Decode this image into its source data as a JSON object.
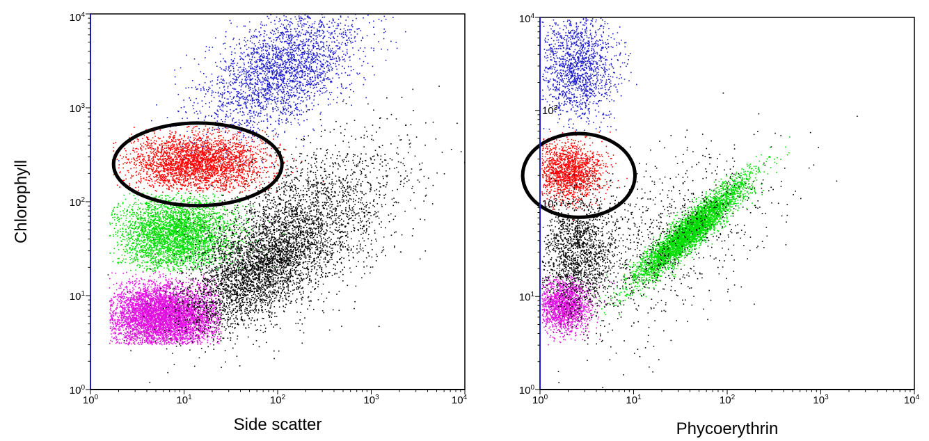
{
  "chart_data": [
    {
      "type": "scatter",
      "title": "",
      "xlabel": "Side scatter",
      "ylabel": "Chlorophyll",
      "xscale": "log",
      "yscale": "log",
      "xlim": [
        1,
        10000
      ],
      "ylim": [
        1,
        10000
      ],
      "grid": false,
      "x_ticks": [
        {
          "base": "10",
          "exp": "0"
        },
        {
          "base": "10",
          "exp": "1"
        },
        {
          "base": "10",
          "exp": "2"
        },
        {
          "base": "10",
          "exp": "3"
        },
        {
          "base": "10",
          "exp": "4"
        }
      ],
      "y_ticks": [
        {
          "base": "10",
          "exp": "0"
        },
        {
          "base": "10",
          "exp": "1"
        },
        {
          "base": "10",
          "exp": "2"
        },
        {
          "base": "10",
          "exp": "3"
        },
        {
          "base": "10",
          "exp": "4"
        }
      ],
      "series": [
        {
          "color": "#1a1acc",
          "count": 2600,
          "clusters": [
            {
              "cx": 110,
              "cy": 2500,
              "sx": 0.42,
              "sy": 0.34,
              "rho": 0.5
            }
          ]
        },
        {
          "color": "#ff0000",
          "count": 3000,
          "clusters": [
            {
              "cx": 14,
              "cy": 260,
              "sx": 0.36,
              "sy": 0.15,
              "rho": 0.0
            }
          ],
          "xmin": 1.6,
          "ymin": 125,
          "ymax": 650
        },
        {
          "color": "#00dd00",
          "count": 3500,
          "clusters": [
            {
              "cx": 8,
              "cy": 45,
              "sx": 0.32,
              "sy": 0.2,
              "rho": 0.0
            }
          ],
          "xmin": 1.6,
          "ymin": 18,
          "ymax": 125
        },
        {
          "color": "#e010e0",
          "count": 5200,
          "clusters": [
            {
              "cx": 6,
              "cy": 6,
              "sx": 0.3,
              "sy": 0.17,
              "rho": 0.0
            }
          ],
          "xmin": 1.6,
          "xmax": 25,
          "ymin": 3,
          "ymax": 18
        },
        {
          "color": "#000000",
          "count": 5200,
          "clusters": [
            {
              "cx": 60,
              "cy": 18,
              "sx": 0.38,
              "sy": 0.32,
              "rho": 0.55,
              "w": 0.55
            },
            {
              "cx": 200,
              "cy": 60,
              "sx": 0.55,
              "sy": 0.45,
              "rho": 0.5,
              "w": 0.45
            }
          ]
        }
      ],
      "gate": {
        "type": "ellipse",
        "cx": 14,
        "cy": 250,
        "rx_decades": 0.9,
        "ry_decades": 0.44
      }
    },
    {
      "type": "scatter",
      "title": "",
      "xlabel": "Phycoerythrin",
      "ylabel": "",
      "xscale": "log",
      "yscale": "log",
      "xlim": [
        1,
        10000
      ],
      "ylim": [
        1,
        10000
      ],
      "grid": false,
      "x_ticks": [
        {
          "base": "10",
          "exp": "0"
        },
        {
          "base": "10",
          "exp": "1"
        },
        {
          "base": "10",
          "exp": "2"
        },
        {
          "base": "10",
          "exp": "3"
        },
        {
          "base": "10",
          "exp": "4"
        }
      ],
      "y_ticks": [
        {
          "base": "10",
          "exp": "0"
        },
        {
          "base": "10",
          "exp": "1"
        },
        {
          "base": "10",
          "exp": "2"
        },
        {
          "base": "10",
          "exp": "3"
        },
        {
          "base": "10",
          "exp": "4"
        }
      ],
      "series": [
        {
          "color": "#1a1acc",
          "count": 1400,
          "clusters": [
            {
              "cx": 2.5,
              "cy": 3000,
              "sx": 0.2,
              "sy": 0.3,
              "rho": 0.0
            }
          ],
          "xmin": 1.05,
          "ymin": 600
        },
        {
          "color": "#ff0000",
          "count": 1500,
          "clusters": [
            {
              "cx": 2,
              "cy": 220,
              "sx": 0.18,
              "sy": 0.16,
              "rho": 0.0
            }
          ],
          "xmin": 1.05,
          "ymin": 60,
          "ymax": 600
        },
        {
          "color": "#00dd00",
          "count": 4500,
          "clusters": [
            {
              "cx": 40,
              "cy": 50,
              "sx": 0.3,
              "sy": 0.28,
              "rho": 0.93
            }
          ]
        },
        {
          "color": "#e010e0",
          "count": 1600,
          "clusters": [
            {
              "cx": 1.8,
              "cy": 8,
              "sx": 0.14,
              "sy": 0.14,
              "rho": 0.0
            }
          ],
          "xmin": 1.05,
          "ymin": 3,
          "ymax": 17
        },
        {
          "color": "#000000",
          "count": 2400,
          "clusters": [
            {
              "cx": 2.5,
              "cy": 30,
              "sx": 0.2,
              "sy": 0.3,
              "rho": 0.0,
              "w": 0.6
            },
            {
              "cx": 20,
              "cy": 40,
              "sx": 0.6,
              "sy": 0.5,
              "rho": 0.5,
              "w": 0.4
            }
          ],
          "xmin": 1.05
        }
      ],
      "gate": {
        "type": "ellipse",
        "cx": 2.6,
        "cy": 200,
        "rx_decades": 0.6,
        "ry_decades": 0.45
      }
    }
  ]
}
